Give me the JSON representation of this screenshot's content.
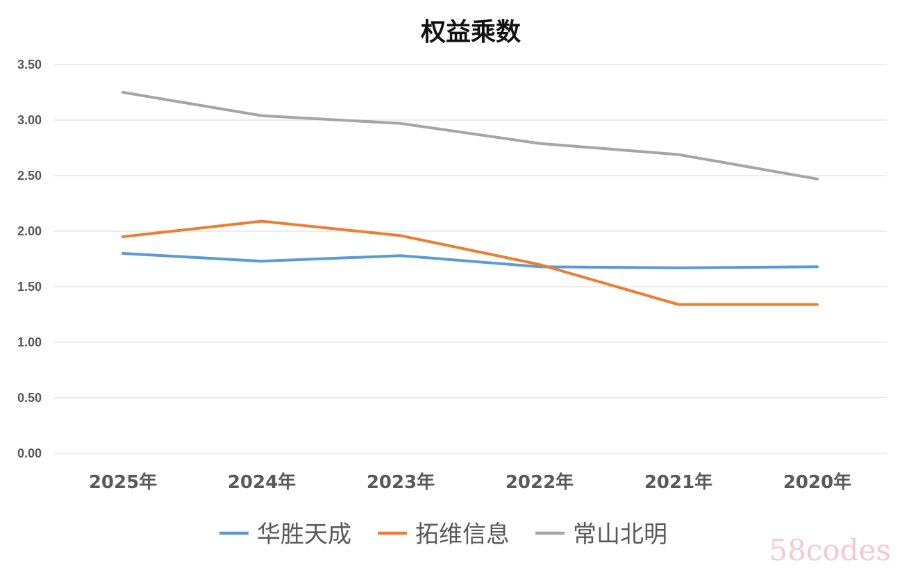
{
  "chart_data": {
    "type": "line",
    "title": "权益乘数",
    "xlabel": "",
    "ylabel": "",
    "categories": [
      "2025年",
      "2024年",
      "2023年",
      "2022年",
      "2021年",
      "2020年"
    ],
    "y_ticks": [
      "0.00",
      "0.50",
      "1.00",
      "1.50",
      "2.00",
      "2.50",
      "3.00",
      "3.50"
    ],
    "ylim": [
      0,
      3.5
    ],
    "grid": true,
    "legend_position": "bottom",
    "series": [
      {
        "name": "华胜天成",
        "color": "#5b9bd5",
        "values": [
          1.8,
          1.73,
          1.78,
          1.68,
          1.67,
          1.68
        ]
      },
      {
        "name": "拓维信息",
        "color": "#ed7d31",
        "values": [
          1.95,
          2.09,
          1.96,
          1.7,
          1.34,
          1.34
        ]
      },
      {
        "name": "常山北明",
        "color": "#a5a5a5",
        "values": [
          3.25,
          3.04,
          2.97,
          2.79,
          2.69,
          2.47
        ]
      }
    ]
  },
  "watermark": "58codes"
}
